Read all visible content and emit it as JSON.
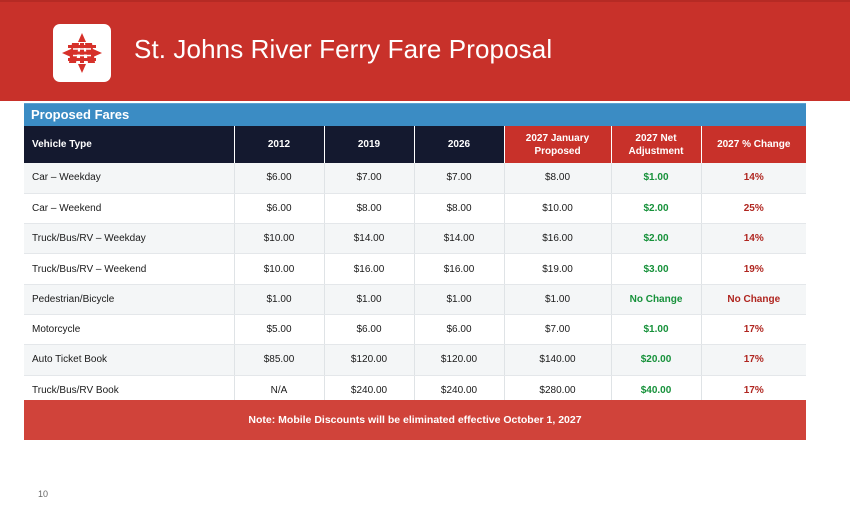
{
  "header": {
    "title": "St. Johns River Ferry Fare Proposal",
    "logo_icon": "jta-logo",
    "colors": {
      "brand_red": "#c8312a",
      "section_blue": "#3b8cc4",
      "navy": "#14192f",
      "green": "#16913a"
    }
  },
  "section": {
    "title": "Proposed Fares"
  },
  "table": {
    "columns": [
      "Vehicle Type",
      "2012",
      "2019",
      "2026",
      "2027  January Proposed",
      "2027 Net Adjustment",
      "2027 % Change"
    ],
    "rows": [
      [
        "Car – Weekday",
        "$6.00",
        "$7.00",
        "$7.00",
        "$8.00",
        "$1.00",
        "14%"
      ],
      [
        "Car – Weekend",
        "$6.00",
        "$8.00",
        "$8.00",
        "$10.00",
        "$2.00",
        "25%"
      ],
      [
        "Truck/Bus/RV – Weekday",
        "$10.00",
        "$14.00",
        "$14.00",
        "$16.00",
        "$2.00",
        "14%"
      ],
      [
        "Truck/Bus/RV – Weekend",
        "$10.00",
        "$16.00",
        "$16.00",
        "$19.00",
        "$3.00",
        "19%"
      ],
      [
        "Pedestrian/Bicycle",
        "$1.00",
        "$1.00",
        "$1.00",
        "$1.00",
        "No Change",
        "No Change"
      ],
      [
        "Motorcycle",
        "$5.00",
        "$6.00",
        "$6.00",
        "$7.00",
        "$1.00",
        "17%"
      ],
      [
        "Auto Ticket Book",
        "$85.00",
        "$120.00",
        "$120.00",
        "$140.00",
        "$20.00",
        "17%"
      ],
      [
        "Truck/Bus/RV Book",
        "N/A",
        "$240.00",
        "$240.00",
        "$280.00",
        "$40.00",
        "17%"
      ]
    ]
  },
  "note": "Note: Mobile Discounts will be eliminated effective October 1, 2027",
  "page_number": "10"
}
